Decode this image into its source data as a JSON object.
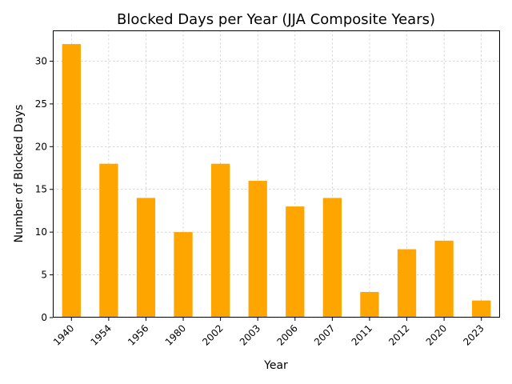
{
  "chart_data": {
    "type": "bar",
    "title": "Blocked Days per Year (JJA Composite Years)",
    "xlabel": "Year",
    "ylabel": "Number of Blocked Days",
    "categories": [
      "1940",
      "1954",
      "1956",
      "1980",
      "2002",
      "2003",
      "2006",
      "2007",
      "2011",
      "2012",
      "2020",
      "2023"
    ],
    "values": [
      32,
      18,
      14,
      10,
      18,
      16,
      13,
      14,
      3,
      8,
      9,
      2
    ],
    "ylim": [
      0,
      33.6
    ],
    "yticks": [
      0,
      5,
      10,
      15,
      20,
      25,
      30
    ],
    "bar_color": "#FFA500",
    "grid": true,
    "legend": "none"
  }
}
